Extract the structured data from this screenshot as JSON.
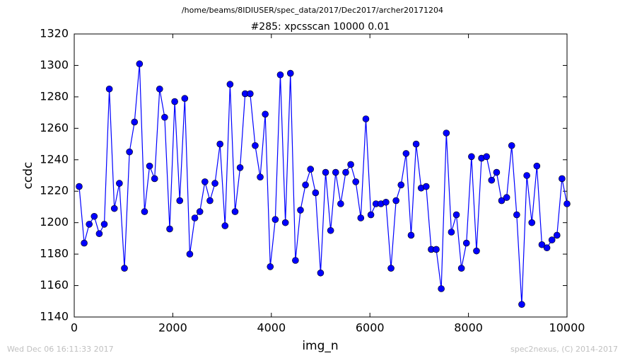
{
  "chart_data": {
    "type": "line",
    "suptitle": "/home/beams/8IDIUSER/spec_data/2017/Dec2017/archer20171204",
    "title": "#285: xpcsscan 10000 0.01",
    "xlabel": "img_n",
    "ylabel": "ccdc",
    "footer_left": "Wed Dec 06 16:11:33 2017",
    "footer_right": "spec2nexus, (C) 2014-2017",
    "xlim": [
      0,
      10000
    ],
    "xticks": [
      0,
      2000,
      4000,
      6000,
      8000,
      10000
    ],
    "ylim": [
      1140,
      1320
    ],
    "yticks": [
      1140,
      1160,
      1180,
      1200,
      1220,
      1240,
      1260,
      1280,
      1300,
      1320
    ],
    "x": [
      100,
      202,
      304,
      406,
      508,
      610,
      712,
      814,
      916,
      1019,
      1121,
      1223,
      1325,
      1427,
      1529,
      1631,
      1733,
      1835,
      1937,
      2039,
      2141,
      2243,
      2345,
      2447,
      2549,
      2652,
      2754,
      2856,
      2958,
      3060,
      3162,
      3264,
      3366,
      3468,
      3570,
      3672,
      3774,
      3876,
      3978,
      4080,
      4182,
      4285,
      4387,
      4489,
      4591,
      4693,
      4795,
      4897,
      4999,
      5101,
      5203,
      5305,
      5407,
      5509,
      5611,
      5713,
      5815,
      5918,
      6020,
      6122,
      6224,
      6326,
      6428,
      6530,
      6632,
      6734,
      6836,
      6938,
      7040,
      7142,
      7244,
      7346,
      7448,
      7551,
      7653,
      7755,
      7857,
      7959,
      8061,
      8163,
      8265,
      8367,
      8469,
      8571,
      8673,
      8775,
      8877,
      8979,
      9081,
      9184,
      9286,
      9388,
      9490,
      9592,
      9694,
      9796,
      9898,
      10000
    ],
    "series": [
      {
        "color": "#0000ff",
        "values": [
          1223,
          1187,
          1199,
          1204,
          1193,
          1199,
          1285,
          1209,
          1225,
          1171,
          1245,
          1264,
          1301,
          1207,
          1236,
          1228,
          1285,
          1267,
          1196,
          1277,
          1214,
          1279,
          1180,
          1203,
          1207,
          1226,
          1214,
          1225,
          1250,
          1198,
          1288,
          1207,
          1235,
          1282,
          1282,
          1249,
          1229,
          1269,
          1172,
          1202,
          1294,
          1200,
          1295,
          1176,
          1208,
          1224,
          1234,
          1219,
          1168,
          1232,
          1195,
          1232,
          1212,
          1232,
          1237,
          1226,
          1203,
          1266,
          1205,
          1212,
          1212,
          1213,
          1171,
          1214,
          1224,
          1244,
          1192,
          1250,
          1222,
          1223,
          1183,
          1183,
          1158,
          1257,
          1194,
          1205,
          1171,
          1187,
          1242,
          1182,
          1241,
          1242,
          1227,
          1232,
          1214,
          1216,
          1249,
          1205,
          1148,
          1230,
          1200,
          1236,
          1186,
          1184,
          1189,
          1192,
          1228,
          1212
        ]
      }
    ]
  }
}
